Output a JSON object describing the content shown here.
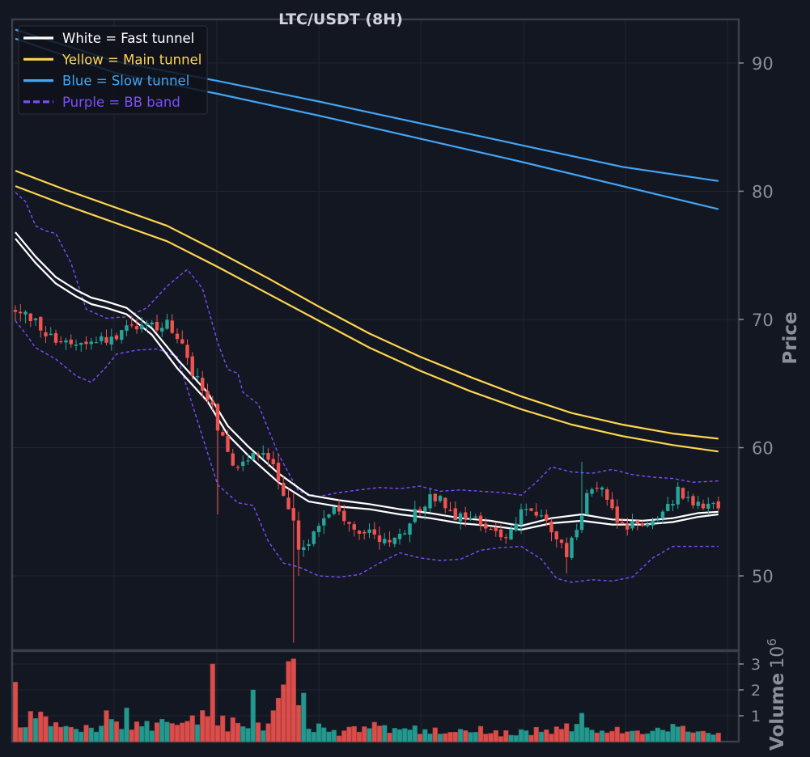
{
  "colors": {
    "background": "#131722",
    "grid": "#1f2533",
    "frame": "#3a3f4a",
    "tick_text": "#8a8f98",
    "title_text": "#d1d4dc",
    "candle_up": "#26a69a",
    "candle_down": "#ef5350",
    "fast_tunnel": "#ffffff",
    "main_tunnel": "#ffd54f",
    "slow_tunnel": "#42a5f5",
    "bb_band": "#7c4dff"
  },
  "chart_data": {
    "type": "candlestick",
    "title": "LTC/USDT (8H)",
    "grid": true,
    "legend_position": "top-left",
    "price_axis": {
      "label": "Price",
      "position": "right",
      "ticks": [
        50,
        60,
        70,
        80,
        90
      ],
      "ylim": [
        44.2,
        93.4
      ]
    },
    "volume_axis": {
      "label": "Volume",
      "multiplier": "10",
      "exponent": "6",
      "position": "right",
      "ticks": [
        1,
        2,
        3
      ],
      "ylim": [
        0,
        3.5
      ]
    },
    "bar_count": 140,
    "legend": [
      {
        "label": "White = Fast tunnel",
        "color": "#ffffff",
        "dash": false
      },
      {
        "label": "Yellow = Main tunnel",
        "color": "#ffd54f",
        "dash": false
      },
      {
        "label": "Blue = Slow tunnel",
        "color": "#42a5f5",
        "dash": false
      },
      {
        "label": "Purple = BB band",
        "color": "#7c4dff",
        "dash": true
      }
    ],
    "close_path": [
      [
        0,
        70.5
      ],
      [
        4,
        69.8
      ],
      [
        7,
        68.6
      ],
      [
        11,
        68.2
      ],
      [
        15,
        68.5
      ],
      [
        18,
        68.4
      ],
      [
        22,
        69.1
      ],
      [
        25,
        69.3
      ],
      [
        30,
        69.6
      ],
      [
        32,
        68.6
      ],
      [
        35,
        66.0
      ],
      [
        37,
        64.7
      ],
      [
        39,
        63.6
      ],
      [
        40,
        61.5
      ],
      [
        42,
        59.5
      ],
      [
        44,
        58.6
      ],
      [
        46,
        59.2
      ],
      [
        48,
        59.6
      ],
      [
        51,
        58.6
      ],
      [
        53,
        56.2
      ],
      [
        55,
        54.0
      ],
      [
        56,
        52.4
      ],
      [
        58,
        52.6
      ],
      [
        60,
        54.2
      ],
      [
        63,
        55.0
      ],
      [
        66,
        54.3
      ],
      [
        69,
        53.3
      ],
      [
        72,
        53.0
      ],
      [
        74,
        52.5
      ],
      [
        76,
        53.0
      ],
      [
        79,
        54.9
      ],
      [
        82,
        56.2
      ],
      [
        84,
        56.1
      ],
      [
        87,
        54.7
      ],
      [
        91,
        54.2
      ],
      [
        94,
        53.3
      ],
      [
        97,
        53.2
      ],
      [
        100,
        55.1
      ],
      [
        103,
        54.8
      ],
      [
        106,
        53.5
      ],
      [
        109,
        51.8
      ],
      [
        111,
        53.4
      ],
      [
        113,
        56.9
      ],
      [
        116,
        56.5
      ],
      [
        119,
        54.3
      ],
      [
        122,
        53.9
      ],
      [
        125,
        54.2
      ],
      [
        128,
        54.6
      ],
      [
        131,
        56.7
      ],
      [
        134,
        55.9
      ],
      [
        137,
        55.6
      ],
      [
        139,
        55.2
      ]
    ],
    "volume_path": [
      [
        0,
        0.8
      ],
      [
        4,
        0.9
      ],
      [
        8,
        0.6
      ],
      [
        12,
        0.5
      ],
      [
        16,
        0.45
      ],
      [
        19,
        0.9
      ],
      [
        22,
        0.6
      ],
      [
        25,
        0.55
      ],
      [
        28,
        0.7
      ],
      [
        31,
        0.55
      ],
      [
        35,
        0.8
      ],
      [
        38,
        1.3
      ],
      [
        40,
        0.9
      ],
      [
        42,
        0.6
      ],
      [
        45,
        0.8
      ],
      [
        48,
        0.7
      ],
      [
        50,
        0.5
      ],
      [
        53,
        1.7
      ],
      [
        56,
        2.1
      ],
      [
        58,
        0.7
      ],
      [
        61,
        0.4
      ],
      [
        64,
        0.35
      ],
      [
        67,
        0.45
      ],
      [
        70,
        0.4
      ],
      [
        73,
        0.45
      ],
      [
        76,
        0.45
      ],
      [
        79,
        0.45
      ],
      [
        82,
        0.4
      ],
      [
        85,
        0.45
      ],
      [
        88,
        0.35
      ],
      [
        92,
        0.45
      ],
      [
        95,
        0.35
      ],
      [
        98,
        0.3
      ],
      [
        102,
        0.4
      ],
      [
        105,
        0.45
      ],
      [
        108,
        0.5
      ],
      [
        112,
        0.7
      ],
      [
        115,
        0.4
      ],
      [
        118,
        0.4
      ],
      [
        121,
        0.45
      ],
      [
        124,
        0.45
      ],
      [
        127,
        0.45
      ],
      [
        130,
        0.55
      ],
      [
        134,
        0.45
      ],
      [
        139,
        0.3
      ]
    ],
    "volume_spikes": [
      {
        "index": 0,
        "value": 2.3
      },
      {
        "index": 39,
        "value": 3.0
      },
      {
        "index": 41,
        "value": 1.0
      },
      {
        "index": 47,
        "value": 2.0
      },
      {
        "index": 53,
        "value": 2.2
      },
      {
        "index": 54,
        "value": 3.1
      },
      {
        "index": 55,
        "value": 3.2
      },
      {
        "index": 56,
        "value": 1.4
      },
      {
        "index": 22,
        "value": 1.3
      },
      {
        "index": 18,
        "value": 1.2
      },
      {
        "index": 5,
        "value": 1.15
      },
      {
        "index": 112,
        "value": 1.1
      },
      {
        "index": 71,
        "value": 0.75
      }
    ],
    "wick_extremes": [
      {
        "index": 40,
        "high": 60.5,
        "low": 54.8
      },
      {
        "index": 55,
        "high": 56.5,
        "low": 44.8
      },
      {
        "index": 56,
        "high": 55.0,
        "low": 50.0
      },
      {
        "index": 112,
        "high": 58.9,
        "low": 53.5
      },
      {
        "index": 109,
        "high": 53.0,
        "low": 50.2
      }
    ],
    "fast_tunnel": {
      "upper": [
        [
          0,
          76.8
        ],
        [
          4,
          74.9
        ],
        [
          8,
          73.3
        ],
        [
          12,
          72.3
        ],
        [
          15,
          71.7
        ],
        [
          18,
          71.4
        ],
        [
          22,
          70.9
        ],
        [
          27,
          69.3
        ],
        [
          32,
          66.9
        ],
        [
          38,
          64.3
        ],
        [
          42,
          61.7
        ],
        [
          46,
          60.1
        ],
        [
          52,
          58.0
        ],
        [
          58,
          56.3
        ],
        [
          64,
          55.9
        ],
        [
          70,
          55.6
        ],
        [
          76,
          55.2
        ],
        [
          82,
          54.9
        ],
        [
          88,
          54.5
        ],
        [
          94,
          54.3
        ],
        [
          100,
          53.9
        ],
        [
          106,
          54.5
        ],
        [
          112,
          54.8
        ],
        [
          118,
          54.4
        ],
        [
          124,
          54.3
        ],
        [
          130,
          54.5
        ],
        [
          135,
          54.9
        ],
        [
          139,
          55.0
        ]
      ],
      "lower": [
        [
          0,
          76.3
        ],
        [
          4,
          74.4
        ],
        [
          8,
          72.8
        ],
        [
          12,
          71.8
        ],
        [
          15,
          71.2
        ],
        [
          18,
          70.9
        ],
        [
          22,
          70.4
        ],
        [
          27,
          68.8
        ],
        [
          32,
          66.2
        ],
        [
          38,
          63.6
        ],
        [
          42,
          61.0
        ],
        [
          46,
          59.4
        ],
        [
          52,
          57.3
        ],
        [
          58,
          55.8
        ],
        [
          64,
          55.4
        ],
        [
          70,
          55.2
        ],
        [
          76,
          54.8
        ],
        [
          82,
          54.5
        ],
        [
          88,
          54.1
        ],
        [
          94,
          53.9
        ],
        [
          100,
          53.6
        ],
        [
          106,
          54.1
        ],
        [
          112,
          54.3
        ],
        [
          118,
          54.0
        ],
        [
          124,
          54.0
        ],
        [
          130,
          54.2
        ],
        [
          135,
          54.6
        ],
        [
          139,
          54.8
        ]
      ]
    },
    "main_tunnel": {
      "upper": [
        [
          0,
          81.6
        ],
        [
          10,
          80.1
        ],
        [
          20,
          78.7
        ],
        [
          30,
          77.3
        ],
        [
          40,
          75.3
        ],
        [
          50,
          73.2
        ],
        [
          60,
          71.0
        ],
        [
          70,
          68.9
        ],
        [
          80,
          67.1
        ],
        [
          90,
          65.5
        ],
        [
          100,
          64.0
        ],
        [
          110,
          62.7
        ],
        [
          120,
          61.8
        ],
        [
          130,
          61.1
        ],
        [
          139,
          60.7
        ]
      ],
      "lower": [
        [
          0,
          80.4
        ],
        [
          10,
          78.9
        ],
        [
          20,
          77.5
        ],
        [
          30,
          76.1
        ],
        [
          40,
          74.1
        ],
        [
          50,
          72.0
        ],
        [
          60,
          69.9
        ],
        [
          70,
          67.8
        ],
        [
          80,
          66.0
        ],
        [
          90,
          64.4
        ],
        [
          100,
          63.0
        ],
        [
          110,
          61.8
        ],
        [
          120,
          60.9
        ],
        [
          130,
          60.2
        ],
        [
          139,
          59.7
        ]
      ]
    },
    "slow_tunnel": {
      "upper": [
        [
          0,
          92.6
        ],
        [
          20,
          90.1
        ],
        [
          40,
          88.6
        ],
        [
          60,
          87.0
        ],
        [
          80,
          85.3
        ],
        [
          100,
          83.6
        ],
        [
          120,
          81.9
        ],
        [
          139,
          80.8
        ]
      ],
      "lower": [
        [
          0,
          91.9
        ],
        [
          20,
          89.2
        ],
        [
          40,
          87.6
        ],
        [
          60,
          85.9
        ],
        [
          80,
          84.1
        ],
        [
          100,
          82.3
        ],
        [
          120,
          80.4
        ],
        [
          139,
          78.6
        ]
      ]
    },
    "bb_band": {
      "upper": [
        [
          0,
          79.9
        ],
        [
          2,
          79.2
        ],
        [
          4,
          77.3
        ],
        [
          6,
          76.9
        ],
        [
          8,
          76.7
        ],
        [
          11,
          74.4
        ],
        [
          14,
          70.8
        ],
        [
          18,
          70.1
        ],
        [
          22,
          70.2
        ],
        [
          26,
          70.9
        ],
        [
          30,
          72.6
        ],
        [
          34,
          73.9
        ],
        [
          37,
          72.4
        ],
        [
          40,
          68.2
        ],
        [
          42,
          66.1
        ],
        [
          44,
          65.8
        ],
        [
          45,
          64.3
        ],
        [
          48,
          63.4
        ],
        [
          52,
          59.5
        ],
        [
          56,
          56.6
        ],
        [
          60,
          56.2
        ],
        [
          64,
          56.5
        ],
        [
          68,
          56.7
        ],
        [
          72,
          56.9
        ],
        [
          76,
          56.8
        ],
        [
          80,
          57.0
        ],
        [
          84,
          56.6
        ],
        [
          88,
          56.7
        ],
        [
          92,
          56.6
        ],
        [
          96,
          56.5
        ],
        [
          100,
          56.3
        ],
        [
          103,
          57.3
        ],
        [
          106,
          58.5
        ],
        [
          110,
          58.1
        ],
        [
          114,
          58.0
        ],
        [
          118,
          58.3
        ],
        [
          122,
          57.9
        ],
        [
          126,
          57.7
        ],
        [
          130,
          57.6
        ],
        [
          134,
          57.3
        ],
        [
          139,
          57.4
        ]
      ],
      "lower": [
        [
          0,
          69.9
        ],
        [
          2,
          68.9
        ],
        [
          4,
          67.8
        ],
        [
          8,
          66.9
        ],
        [
          12,
          65.6
        ],
        [
          15,
          65.1
        ],
        [
          18,
          66.3
        ],
        [
          20,
          67.3
        ],
        [
          24,
          67.6
        ],
        [
          28,
          67.7
        ],
        [
          32,
          67.1
        ],
        [
          36,
          62.1
        ],
        [
          40,
          57.1
        ],
        [
          44,
          55.7
        ],
        [
          47,
          55.5
        ],
        [
          50,
          52.7
        ],
        [
          53,
          51.0
        ],
        [
          56,
          50.7
        ],
        [
          60,
          50.0
        ],
        [
          64,
          49.9
        ],
        [
          68,
          50.1
        ],
        [
          72,
          51.0
        ],
        [
          76,
          51.8
        ],
        [
          80,
          51.4
        ],
        [
          84,
          51.2
        ],
        [
          88,
          51.3
        ],
        [
          92,
          52.0
        ],
        [
          96,
          52.2
        ],
        [
          100,
          52.3
        ],
        [
          104,
          51.3
        ],
        [
          107,
          49.8
        ],
        [
          110,
          49.5
        ],
        [
          114,
          49.7
        ],
        [
          118,
          49.6
        ],
        [
          122,
          49.9
        ],
        [
          126,
          51.4
        ],
        [
          130,
          52.3
        ],
        [
          134,
          52.3
        ],
        [
          139,
          52.3
        ]
      ]
    }
  }
}
